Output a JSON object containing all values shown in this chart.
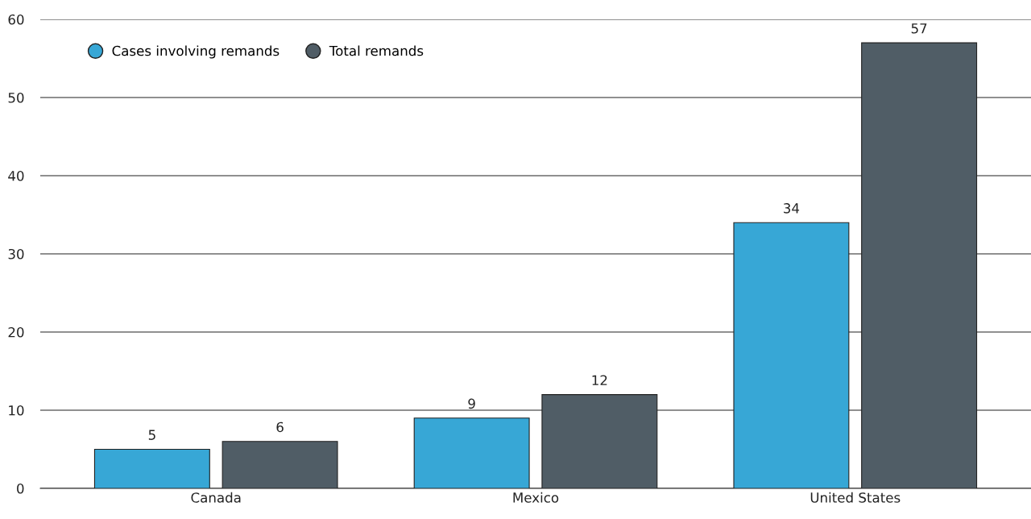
{
  "chart_data": {
    "type": "bar",
    "categories": [
      "Canada",
      "Mexico",
      "United States"
    ],
    "series": [
      {
        "name": "Cases involving remands",
        "color": "#37a7d6",
        "values": [
          5,
          9,
          34
        ]
      },
      {
        "name": "Total remands",
        "color": "#505d66",
        "values": [
          6,
          12,
          57
        ]
      }
    ],
    "ylim": [
      0,
      60
    ],
    "yticks": [
      0,
      10,
      20,
      30,
      40,
      50,
      60
    ],
    "grid": "y",
    "legend": "top left",
    "data_labels": true
  }
}
